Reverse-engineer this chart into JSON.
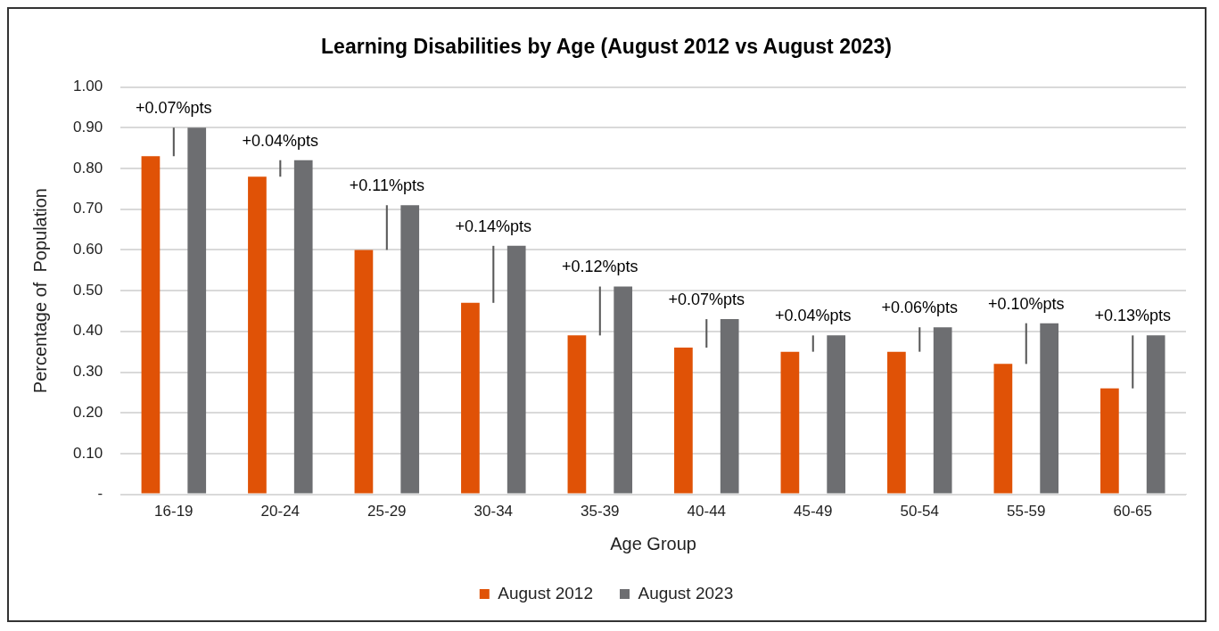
{
  "chart_data": {
    "type": "bar",
    "title": "Learning Disabilities by Age (August 2012 vs August 2023)",
    "xlabel": "Age Group",
    "ylabel": "Percentage of  Population",
    "categories": [
      "16-19",
      "20-24",
      "25-29",
      "30-34",
      "35-39",
      "40-44",
      "45-49",
      "50-54",
      "55-59",
      "60-65"
    ],
    "series": [
      {
        "name": "August 2012",
        "color": "#e05206",
        "values": [
          0.83,
          0.78,
          0.6,
          0.47,
          0.39,
          0.36,
          0.35,
          0.35,
          0.32,
          0.26
        ]
      },
      {
        "color": "#595959",
        "base": [
          0.83,
          0.78,
          0.6,
          0.47,
          0.39,
          0.36,
          0.35,
          0.35,
          0.32,
          0.26
        ],
        "values": [
          0.07,
          0.04,
          0.11,
          0.14,
          0.12,
          0.07,
          0.04,
          0.06,
          0.1,
          0.13
        ],
        "value_labels": [
          "+0.07%pts",
          "+0.04%pts",
          "+0.11%pts",
          "+0.14%pts",
          "+0.12%pts",
          "+0.07%pts",
          "+0.04%pts",
          "+0.06%pts",
          "+0.10%pts",
          "+0.13%pts"
        ]
      },
      {
        "name": "August 2023",
        "color": "#6d6e71",
        "values": [
          0.9,
          0.82,
          0.71,
          0.61,
          0.51,
          0.43,
          0.39,
          0.41,
          0.42,
          0.39
        ]
      }
    ],
    "ylim": [
      0,
      1
    ],
    "yticks": [
      {
        "value": 0,
        "label": "-"
      },
      {
        "value": 0.1,
        "label": "0.10"
      },
      {
        "value": 0.2,
        "label": "0.20"
      },
      {
        "value": 0.3,
        "label": "0.30"
      },
      {
        "value": 0.4,
        "label": "0.40"
      },
      {
        "value": 0.5,
        "label": "0.50"
      },
      {
        "value": 0.6,
        "label": "0.60"
      },
      {
        "value": 0.7,
        "label": "0.70"
      },
      {
        "value": 0.8,
        "label": "0.80"
      },
      {
        "value": 0.9,
        "label": "0.90"
      },
      {
        "value": 1,
        "label": "1.00"
      }
    ],
    "grid": "y",
    "legend": "bottom"
  }
}
